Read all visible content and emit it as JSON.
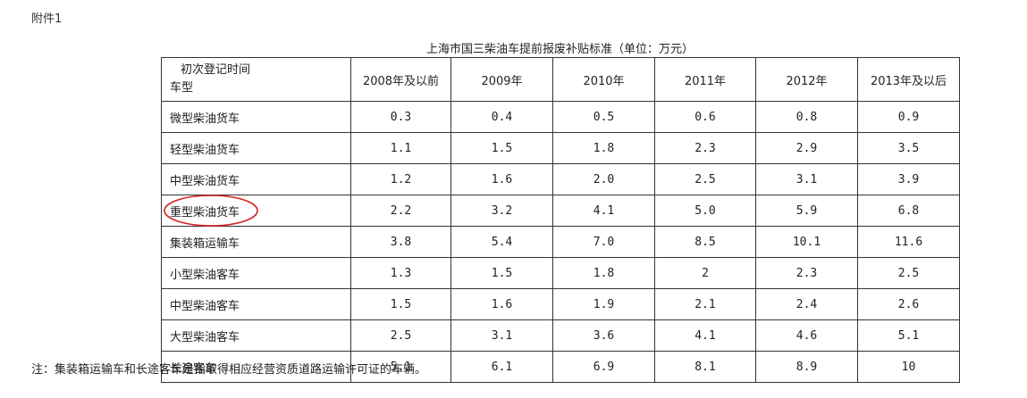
{
  "attachment_label": "附件1",
  "caption": "上海市国三柴油车提前报废补贴标准（单位：万元）",
  "table": {
    "corner_top": "初次登记时间",
    "corner_bottom": "车型",
    "years": [
      "2008年及以前",
      "2009年",
      "2010年",
      "2011年",
      "2012年",
      "2013年及以后"
    ],
    "rows": [
      {
        "type": "微型柴油货车",
        "values": [
          "0.3",
          "0.4",
          "0.5",
          "0.6",
          "0.8",
          "0.9"
        ]
      },
      {
        "type": "轻型柴油货车",
        "values": [
          "1.1",
          "1.5",
          "1.8",
          "2.3",
          "2.9",
          "3.5"
        ]
      },
      {
        "type": "中型柴油货车",
        "values": [
          "1.2",
          "1.6",
          "2.0",
          "2.5",
          "3.1",
          "3.9"
        ]
      },
      {
        "type": "重型柴油货车",
        "values": [
          "2.2",
          "3.2",
          "4.1",
          "5.0",
          "5.9",
          "6.8"
        ]
      },
      {
        "type": "集装箱运输车",
        "values": [
          "3.8",
          "5.4",
          "7.0",
          "8.5",
          "10.1",
          "11.6"
        ]
      },
      {
        "type": "小型柴油客车",
        "values": [
          "1.3",
          "1.5",
          "1.8",
          "2",
          "2.3",
          "2.5"
        ]
      },
      {
        "type": "中型柴油客车",
        "values": [
          "1.5",
          "1.6",
          "1.9",
          "2.1",
          "2.4",
          "2.6"
        ]
      },
      {
        "type": "大型柴油客车",
        "values": [
          "2.5",
          "3.1",
          "3.6",
          "4.1",
          "4.6",
          "5.1"
        ]
      },
      {
        "type": "长途客车",
        "values": [
          "5.1",
          "6.1",
          "6.9",
          "8.1",
          "8.9",
          "10"
        ]
      }
    ],
    "highlight_color": "#d42020"
  },
  "note": "注：集装箱运输车和长途客车是指取得相应经营资质道路运输许可证的车辆。"
}
